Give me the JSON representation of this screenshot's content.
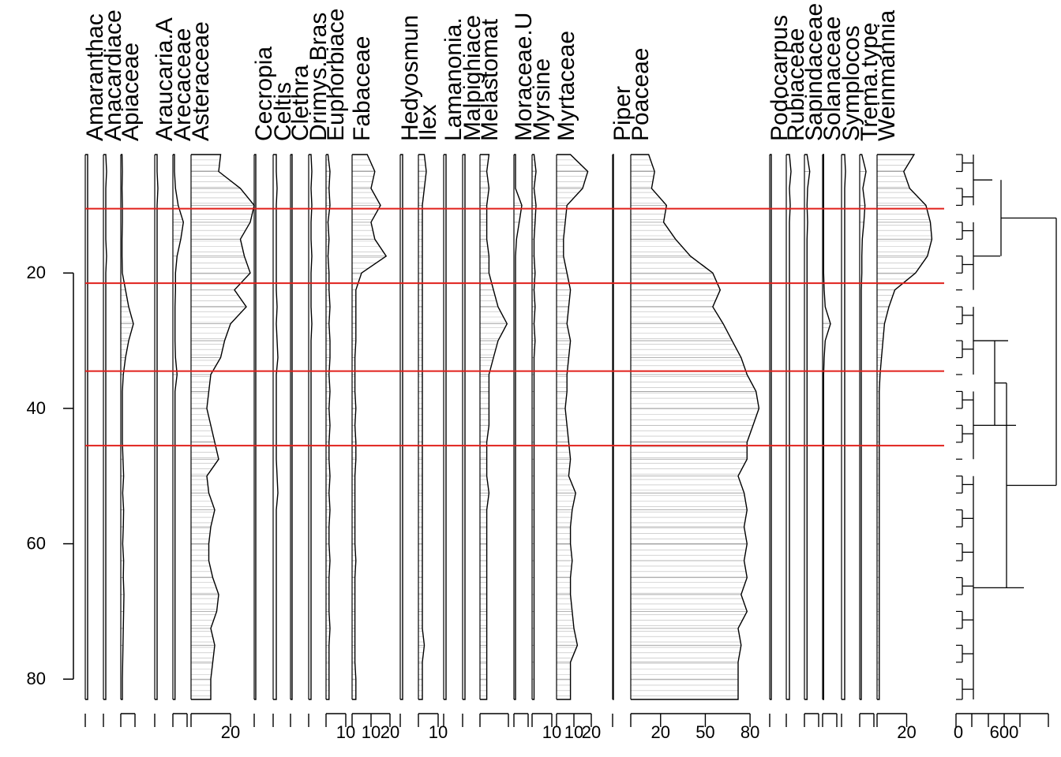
{
  "chart_data": {
    "type": "area",
    "subtype": "pollen stratigraphic diagram with CONISS dendrogram",
    "y_axis": {
      "ticks": [
        20,
        40,
        60,
        80
      ],
      "range": [
        2.5,
        83
      ]
    },
    "depths": [
      2.5,
      5,
      7.5,
      10,
      12.5,
      15,
      17.5,
      20,
      22.5,
      25,
      27.5,
      30,
      32.5,
      35,
      37.5,
      40,
      42.5,
      45,
      47.5,
      50,
      52.5,
      55,
      57.5,
      60,
      62.5,
      65,
      67.5,
      70,
      72.5,
      75,
      77.5,
      80,
      83
    ],
    "zone_boundaries": [
      10.5,
      21.5,
      34.5,
      45.5
    ],
    "zone_line_color": "#e0201b",
    "taxa": [
      {
        "name": "Amaranthaceae",
        "label": "Amaranthac",
        "values": [
          0.3,
          0.3,
          0.3,
          0.3,
          0.3,
          0.3,
          0.3,
          0.3,
          0.3,
          0.3,
          0.3,
          0.3,
          0.3,
          0.3,
          0.3,
          0.3,
          0.3,
          0.3,
          0.3,
          0.3,
          0.3,
          0.3,
          0.3,
          0.3,
          0.3,
          0.3,
          0.3,
          0.3,
          0.3,
          0.3,
          0.3,
          0.3,
          0.3
        ],
        "scale_ticks": [],
        "max": 2
      },
      {
        "name": "Anacardiaceae",
        "label": "Anacardiace",
        "values": [
          0.3,
          0.4,
          0.3,
          0.3,
          0.3,
          0.3,
          0.4,
          0.3,
          0.3,
          0.3,
          0.3,
          0.3,
          0.3,
          0.3,
          0.3,
          0.3,
          0.3,
          0.3,
          0.3,
          0.3,
          0.3,
          0.3,
          0.3,
          0.3,
          0.3,
          0.3,
          0.3,
          0.3,
          0.3,
          0.3,
          0.3,
          0.3,
          0.3
        ],
        "scale_ticks": [],
        "max": 2
      },
      {
        "name": "Apiaceae",
        "label": "Apiaceae",
        "values": [
          0.4,
          0.5,
          0.4,
          0.5,
          0.5,
          0.4,
          0.4,
          0.5,
          1.5,
          2.5,
          4,
          2.5,
          1.5,
          0.8,
          0.5,
          0.5,
          0.5,
          0.5,
          0.7,
          0.9,
          0.6,
          0.9,
          0.8,
          0.6,
          0.9,
          0.8,
          1,
          0.9,
          0.8,
          0.7,
          0.6,
          0.5,
          0.5
        ],
        "scale_ticks": [],
        "max": 5
      },
      {
        "name": "Araucaria.A",
        "label": "Araucaria.A",
        "values": [
          0.3,
          0.3,
          0.4,
          0.3,
          0.3,
          0.3,
          0.3,
          0.3,
          0.3,
          0.3,
          0.3,
          0.3,
          0.3,
          0.3,
          0.3,
          0.3,
          0.3,
          0.3,
          0.3,
          0.3,
          0.3,
          0.3,
          0.3,
          0.3,
          0.3,
          0.3,
          0.3,
          0.3,
          0.3,
          0.3,
          0.3,
          0.3,
          0.3
        ],
        "scale_ticks": [],
        "max": 2
      },
      {
        "name": "Arecaceae",
        "label": "Arecaceae",
        "values": [
          0.3,
          0.3,
          0.5,
          1,
          2,
          1.5,
          0.8,
          0.5,
          0.5,
          0.4,
          0.4,
          0.4,
          0.5,
          0.8,
          0.4,
          0.4,
          0.4,
          0.4,
          0.4,
          0.4,
          0.4,
          0.4,
          0.4,
          0.4,
          0.4,
          0.4,
          0.4,
          0.4,
          0.4,
          0.4,
          0.4,
          0.4,
          0.4
        ],
        "scale_ticks": [],
        "max": 3
      },
      {
        "name": "Asteraceae",
        "label": "Asteraceae",
        "values": [
          15,
          14,
          25,
          32,
          30,
          25,
          27,
          30,
          22,
          28,
          20,
          17,
          15,
          10,
          9,
          8,
          10,
          12,
          14,
          8,
          9,
          12,
          10,
          9,
          9,
          11,
          14,
          13,
          10,
          12,
          11,
          10,
          10
        ],
        "scale_ticks": [
          20
        ],
        "max": 32
      },
      {
        "name": "Cecropia",
        "label": "Cecropia",
        "values": [
          0.2,
          0.2,
          0.2,
          0.2,
          0.2,
          0.2,
          0.2,
          0.2,
          0.2,
          0.2,
          0.2,
          0.2,
          0.2,
          0.2,
          0.2,
          0.2,
          0.2,
          0.2,
          0.2,
          0.2,
          0.2,
          0.2,
          0.2,
          0.2,
          0.2,
          0.2,
          0.2,
          0.2,
          0.2,
          0.2,
          0.2,
          0.2,
          0.2
        ],
        "scale_ticks": [],
        "max": 2
      },
      {
        "name": "Celtis",
        "label": "Celtis",
        "values": [
          0.4,
          0.4,
          0.5,
          0.4,
          0.4,
          0.4,
          0.4,
          0.4,
          0.4,
          0.5,
          0.4,
          0.5,
          0.6,
          0.4,
          0.4,
          0.4,
          0.4,
          0.4,
          0.4,
          0.5,
          0.6,
          0.4,
          0.4,
          0.4,
          0.4,
          0.4,
          0.4,
          0.4,
          0.4,
          0.4,
          0.4,
          0.4,
          0.4
        ],
        "scale_ticks": [],
        "max": 2
      },
      {
        "name": "Clethra",
        "label": "Clethra",
        "values": [
          0.2,
          0.2,
          0.2,
          0.2,
          0.2,
          0.2,
          0.2,
          0.2,
          0.2,
          0.2,
          0.2,
          0.2,
          0.2,
          0.2,
          0.2,
          0.2,
          0.2,
          0.2,
          0.2,
          0.2,
          0.2,
          0.2,
          0.2,
          0.2,
          0.2,
          0.2,
          0.2,
          0.2,
          0.2,
          0.2,
          0.2,
          0.2,
          0.2
        ],
        "scale_ticks": [],
        "max": 2
      },
      {
        "name": "Drimys.Brasiliensis",
        "label": "Drimys.Bras",
        "values": [
          0.3,
          0.4,
          0.3,
          0.4,
          0.3,
          0.3,
          0.4,
          0.3,
          0.3,
          0.3,
          0.4,
          0.3,
          0.3,
          0.3,
          0.3,
          0.3,
          0.3,
          0.3,
          0.3,
          0.3,
          0.3,
          0.3,
          0.3,
          0.3,
          0.3,
          0.3,
          0.3,
          0.3,
          0.3,
          0.3,
          0.3,
          0.3,
          0.3
        ],
        "scale_ticks": [],
        "max": 2
      },
      {
        "name": "Euphorbiaceae",
        "label": "Euphorbiace",
        "values": [
          1,
          2,
          1.5,
          2,
          1,
          1.5,
          1,
          1.5,
          1.5,
          2,
          1.5,
          2,
          2,
          1.5,
          2,
          1.5,
          2,
          1.5,
          1.5,
          2,
          1.5,
          2,
          1.5,
          1.5,
          2,
          1.5,
          1.5,
          1.5,
          2,
          1.5,
          1.5,
          1.5,
          1.5
        ],
        "scale_ticks": [
          10
        ],
        "max": 12
      },
      {
        "name": "Fabaceae",
        "label": "Fabaceae",
        "values": [
          8,
          12,
          10,
          15,
          10,
          12,
          18,
          5,
          2,
          2,
          2,
          2,
          1.5,
          1.5,
          1.5,
          2,
          1.5,
          2,
          2,
          1.5,
          1.5,
          1.5,
          1.5,
          1.5,
          2,
          1.5,
          1.5,
          1.5,
          1.5,
          1.5,
          1.5,
          2,
          2
        ],
        "scale_ticks": [
          10,
          20
        ],
        "max": 25
      },
      {
        "name": "Hedyosmum",
        "label": "Hedyosmun",
        "values": [
          0.3,
          0.3,
          0.3,
          0.3,
          0.3,
          0.3,
          0.3,
          0.3,
          0.3,
          0.3,
          0.3,
          0.3,
          0.3,
          0.3,
          0.3,
          0.3,
          0.3,
          0.3,
          0.3,
          0.3,
          0.3,
          0.3,
          0.3,
          0.3,
          0.3,
          0.3,
          0.3,
          0.3,
          0.3,
          0.3,
          0.3,
          0.3,
          0.3
        ],
        "scale_ticks": [],
        "max": 2
      },
      {
        "name": "Ilex",
        "label": "Ilex",
        "values": [
          3,
          4,
          3,
          2,
          2,
          2,
          2,
          2,
          2,
          2,
          2,
          2,
          2,
          2,
          2,
          2,
          2,
          2,
          2,
          2,
          2,
          2,
          2,
          2,
          2,
          2,
          2,
          2,
          2,
          3,
          2,
          2,
          2
        ],
        "scale_ticks": [
          10
        ],
        "max": 12
      },
      {
        "name": "Lamanonia",
        "label": "Lamanonia.",
        "values": [
          0.3,
          0.3,
          0.3,
          0.3,
          0.3,
          0.3,
          0.3,
          0.3,
          0.3,
          0.3,
          0.3,
          0.3,
          0.3,
          0.3,
          0.3,
          0.3,
          0.3,
          0.3,
          0.3,
          0.3,
          0.3,
          0.3,
          0.3,
          0.3,
          0.3,
          0.3,
          0.3,
          0.3,
          0.3,
          0.3,
          0.3,
          0.3,
          0.3
        ],
        "scale_ticks": [],
        "max": 2
      },
      {
        "name": "Malpighiaceae",
        "label": "Malpighiace",
        "values": [
          0.3,
          0.3,
          0.3,
          0.3,
          0.3,
          0.3,
          0.3,
          0.3,
          0.3,
          0.3,
          0.3,
          0.3,
          0.3,
          0.3,
          0.3,
          0.3,
          0.3,
          0.3,
          0.3,
          0.3,
          0.3,
          0.3,
          0.3,
          0.3,
          0.3,
          0.3,
          0.3,
          0.3,
          0.3,
          0.3,
          0.3,
          0.3,
          0.3
        ],
        "scale_ticks": [],
        "max": 2
      },
      {
        "name": "Melastomataceae",
        "label": "Melastomat",
        "values": [
          2,
          1.5,
          2,
          1.5,
          1.5,
          1.5,
          2,
          2,
          3,
          4,
          6,
          4,
          3,
          2,
          2,
          2,
          2,
          1.5,
          1.5,
          1.5,
          2,
          1.5,
          1.5,
          1.5,
          1.5,
          1.5,
          1.5,
          1.5,
          1.5,
          1.5,
          1.5,
          1.5,
          1.5
        ],
        "scale_ticks": [],
        "max": 7
      },
      {
        "name": "Moraceae.Urticaceae",
        "label": "Moraceae.U",
        "values": [
          0.3,
          0.3,
          0.3,
          1.5,
          1,
          0.5,
          0.3,
          0.3,
          0.3,
          0.3,
          0.3,
          0.3,
          0.3,
          0.3,
          0.3,
          0.3,
          0.3,
          0.3,
          0.3,
          0.3,
          0.3,
          0.3,
          0.3,
          0.3,
          0.3,
          0.3,
          0.3,
          0.3,
          0.3,
          0.3,
          0.3,
          0.3,
          0.3
        ],
        "scale_ticks": [],
        "max": 3
      },
      {
        "name": "Myrsine",
        "label": "Myrsine",
        "values": [
          1,
          2,
          1,
          2,
          1.5,
          1,
          1,
          1.5,
          1,
          1.5,
          1,
          1.5,
          1,
          1,
          1,
          1,
          1,
          1,
          1,
          1,
          1,
          1,
          1,
          1,
          1,
          1,
          1,
          1,
          1,
          1,
          1,
          1,
          1
        ],
        "scale_ticks": [
          10
        ],
        "max": 12
      },
      {
        "name": "Myrtaceae",
        "label": "Myrtaceae",
        "values": [
          8,
          18,
          15,
          6,
          5,
          4,
          4,
          6,
          8,
          7,
          6,
          8,
          7,
          6,
          6,
          5,
          6,
          7,
          8,
          7,
          11,
          9,
          8,
          8,
          9,
          8,
          8,
          9,
          10,
          12,
          8,
          8,
          8
        ],
        "scale_ticks": [
          10,
          20
        ],
        "max": 25
      },
      {
        "name": "Piper",
        "label": "Piper",
        "values": [
          0.1,
          0.1,
          0.1,
          0.1,
          0.1,
          0.1,
          0.1,
          0.1,
          0.1,
          0.1,
          0.1,
          0.1,
          0.1,
          0.1,
          0.1,
          0.1,
          0.1,
          0.1,
          0.1,
          0.1,
          0.1,
          0.1,
          0.1,
          0.1,
          0.1,
          0.1,
          0.1,
          0.1,
          0.1,
          0.1,
          0.1,
          0.1,
          0.1
        ],
        "scale_ticks": [],
        "max": 2
      },
      {
        "name": "Poaceae",
        "label": "Poaceae",
        "values": [
          12,
          16,
          14,
          24,
          22,
          30,
          40,
          55,
          60,
          55,
          62,
          68,
          74,
          78,
          84,
          86,
          82,
          78,
          78,
          72,
          76,
          78,
          76,
          78,
          76,
          78,
          74,
          78,
          72,
          74,
          72,
          72,
          72
        ],
        "scale_ticks": [
          20,
          50,
          80
        ],
        "max": 90
      },
      {
        "name": "Podocarpus",
        "label": "Podocarpus",
        "values": [
          0.2,
          0.2,
          0.2,
          0.2,
          0.2,
          0.2,
          0.2,
          0.2,
          0.2,
          0.2,
          0.2,
          0.2,
          0.2,
          0.2,
          0.2,
          0.2,
          0.2,
          0.2,
          0.2,
          0.2,
          0.2,
          0.2,
          0.2,
          0.2,
          0.2,
          0.2,
          0.2,
          0.2,
          0.2,
          0.2,
          0.2,
          0.2,
          0.2
        ],
        "scale_ticks": [],
        "max": 2
      },
      {
        "name": "Rubiaceae",
        "label": "Rubiaceae",
        "values": [
          0.4,
          0.6,
          0.4,
          0.5,
          0.4,
          0.4,
          0.4,
          0.4,
          0.4,
          0.4,
          0.4,
          0.4,
          0.4,
          0.4,
          0.4,
          0.4,
          0.4,
          0.4,
          0.4,
          0.4,
          0.4,
          0.4,
          0.4,
          0.4,
          0.4,
          0.4,
          0.4,
          0.4,
          0.4,
          0.4,
          0.4,
          0.4,
          0.4
        ],
        "scale_ticks": [],
        "max": 2
      },
      {
        "name": "Sapindaceae",
        "label": "Sapindaceae",
        "values": [
          0.5,
          1,
          0.6,
          0.5,
          0.6,
          0.5,
          0.5,
          0.5,
          0.5,
          0.5,
          0.5,
          0.5,
          0.5,
          0.5,
          0.5,
          0.5,
          0.5,
          0.5,
          0.5,
          0.5,
          0.5,
          0.5,
          0.5,
          0.5,
          0.5,
          0.5,
          0.5,
          0.5,
          0.5,
          0.5,
          0.5,
          0.5,
          0.5
        ],
        "scale_ticks": [],
        "max": 3
      },
      {
        "name": "Solanaceae",
        "label": "Solanaceae",
        "values": [
          0.2,
          0.2,
          0.2,
          0.2,
          0.2,
          0.2,
          0.2,
          0.2,
          0.3,
          0.5,
          1.5,
          0.5,
          0.3,
          0.2,
          0.2,
          0.2,
          0.2,
          0.2,
          0.2,
          0.2,
          0.2,
          0.2,
          0.2,
          0.2,
          0.2,
          0.2,
          0.2,
          0.2,
          0.2,
          0.2,
          0.2,
          0.2,
          0.2
        ],
        "scale_ticks": [],
        "max": 3
      },
      {
        "name": "Symplocos",
        "label": "Symplocos",
        "values": [
          0.4,
          0.5,
          0.4,
          0.4,
          0.4,
          0.4,
          0.4,
          0.4,
          0.4,
          0.4,
          0.4,
          0.4,
          0.4,
          0.4,
          0.4,
          0.4,
          0.4,
          0.4,
          0.4,
          0.4,
          0.4,
          0.4,
          0.4,
          0.4,
          0.4,
          0.4,
          0.4,
          0.4,
          0.4,
          0.4,
          0.4,
          0.4,
          0.4
        ],
        "scale_ticks": [],
        "max": 2
      },
      {
        "name": "Trema.type",
        "label": "Trema.type",
        "values": [
          0.4,
          1.2,
          0.6,
          1,
          0.8,
          0.5,
          0.4,
          0.4,
          0.3,
          0.3,
          0.3,
          0.3,
          0.3,
          0.3,
          0.3,
          0.3,
          0.3,
          0.3,
          0.3,
          0.3,
          0.3,
          0.3,
          0.3,
          0.3,
          0.3,
          0.3,
          0.3,
          0.3,
          0.3,
          0.3,
          0.3,
          0.3,
          0.3
        ],
        "scale_ticks": [],
        "max": 3
      },
      {
        "name": "Weinmannia",
        "label": "Weinmannia",
        "values": [
          25,
          18,
          22,
          33,
          36,
          37,
          34,
          26,
          12,
          8,
          5,
          4,
          3,
          2,
          1.5,
          1.5,
          1.5,
          1.5,
          1.5,
          1.5,
          1.5,
          1.5,
          1.5,
          1.5,
          1.5,
          1.5,
          1.5,
          1.5,
          1.5,
          1.5,
          1.5,
          1.5,
          1.5
        ],
        "scale_ticks": [
          20
        ],
        "max": 40
      }
    ],
    "dendrogram": {
      "scale_ticks": [
        0,
        600
      ],
      "max_height": 1600
    },
    "xlabel": "",
    "ylabel": ""
  }
}
